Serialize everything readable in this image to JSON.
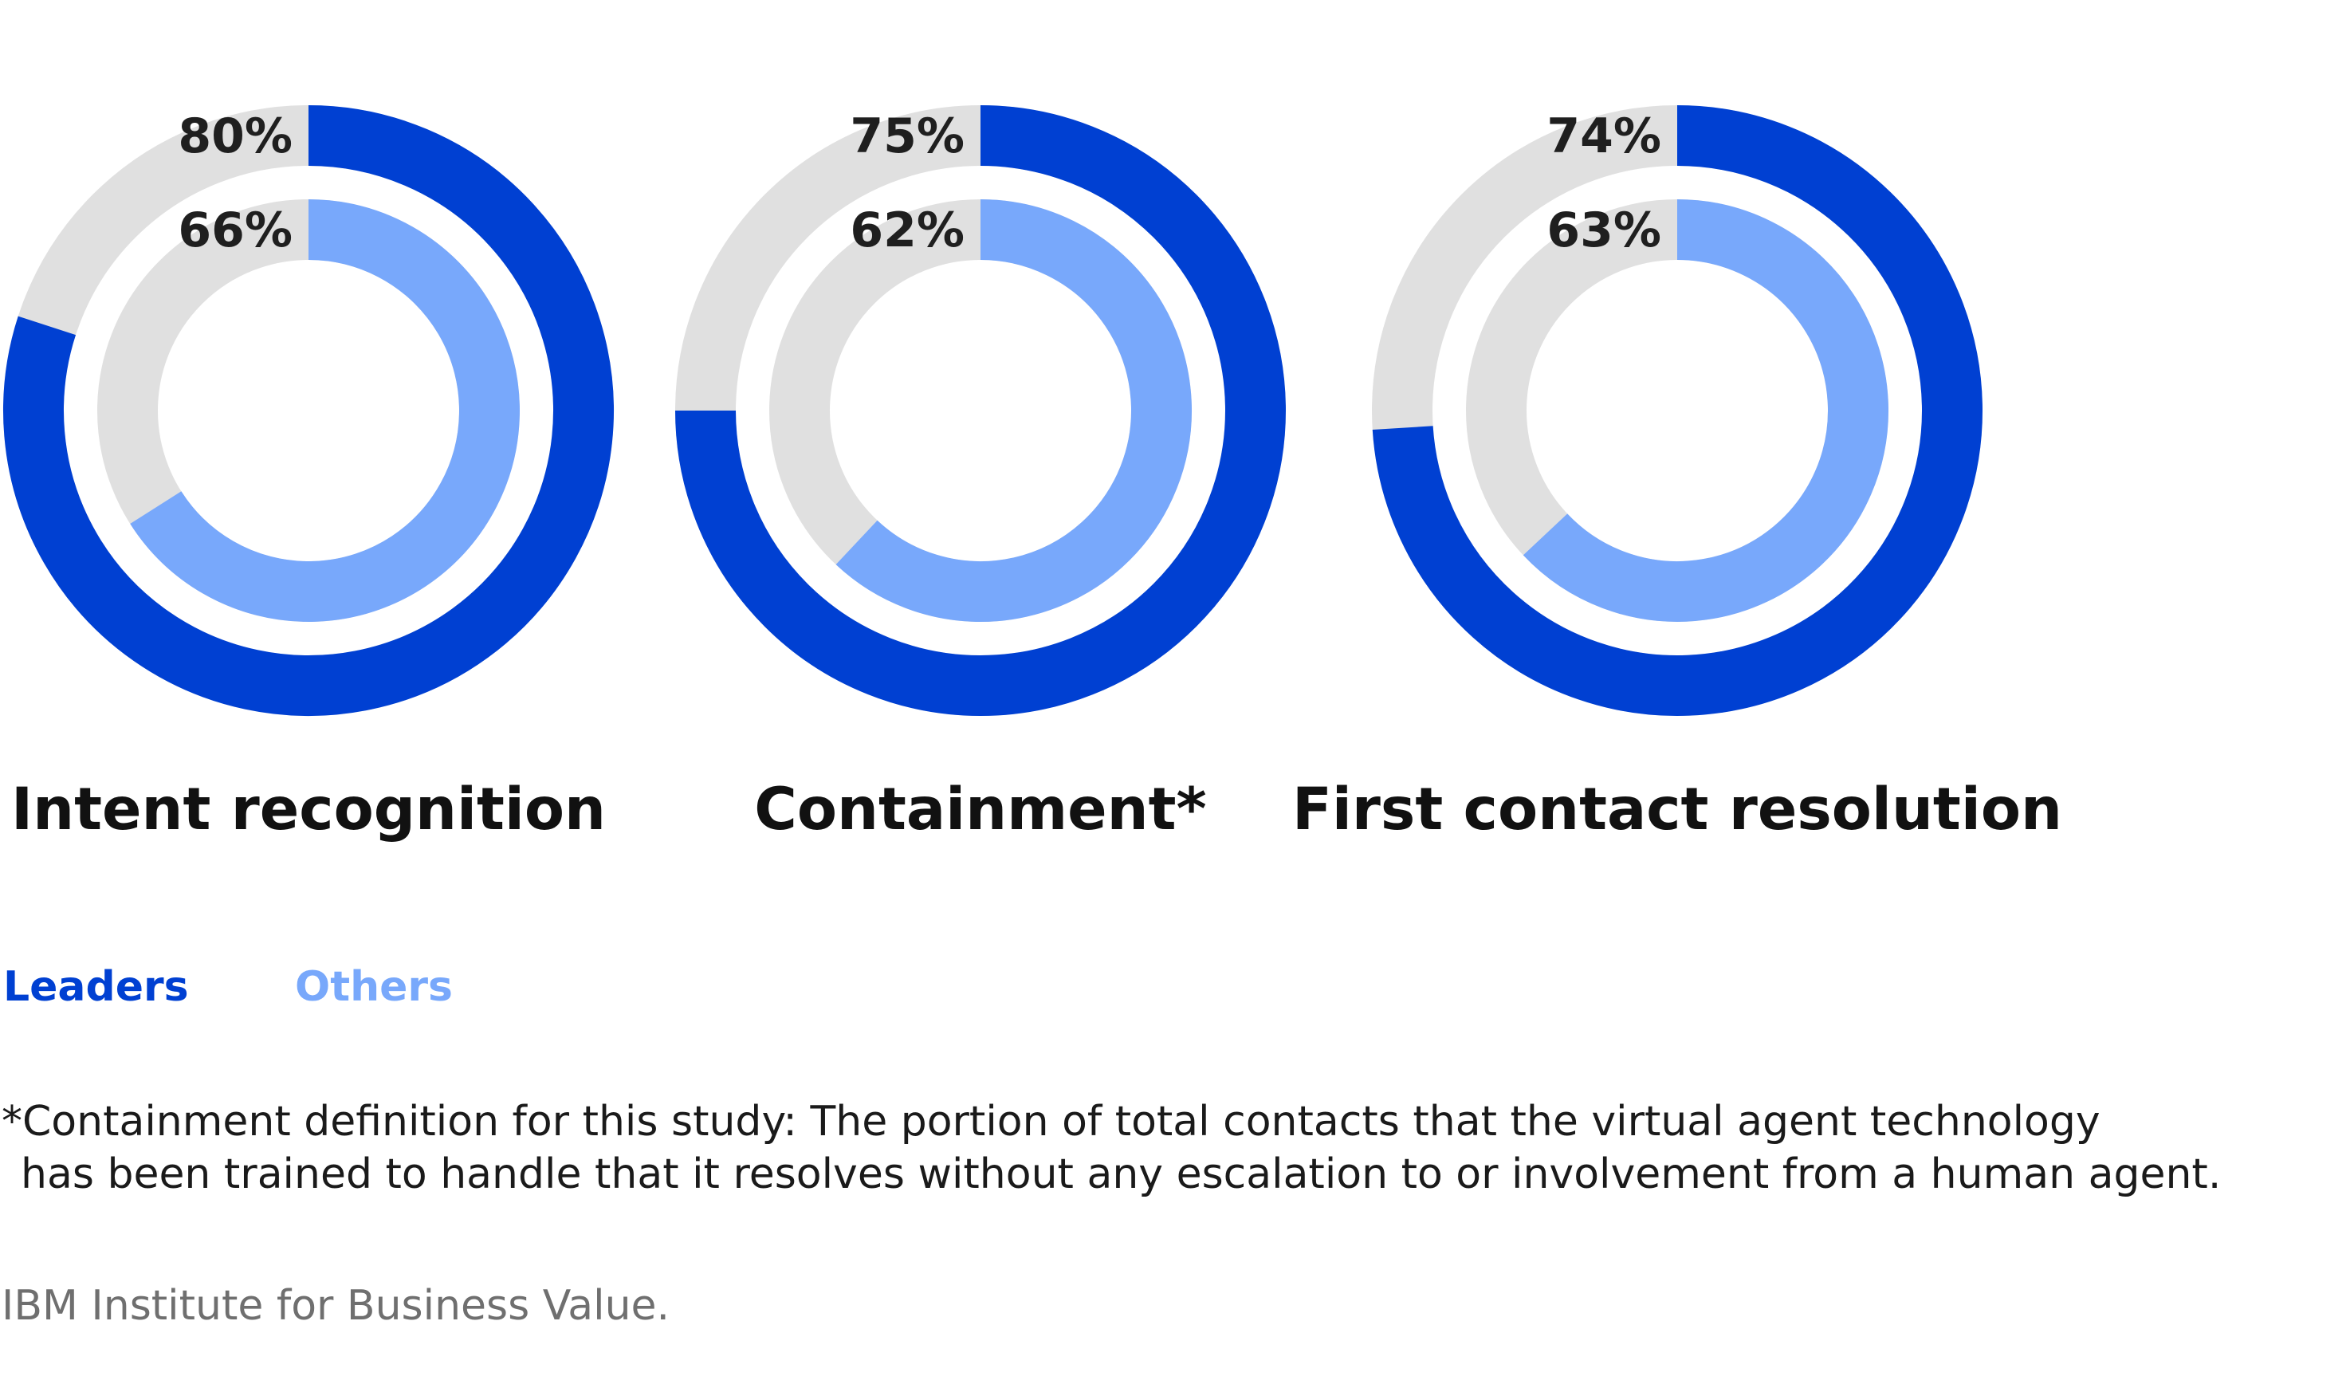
{
  "colors": {
    "leaders": "#0040d2",
    "others": "#78a8fb",
    "track": "#e0e0e0",
    "text": "#1f1f1f",
    "source": "#6f6f6f"
  },
  "chart_data": {
    "type": "donut",
    "unit": "%",
    "series": [
      {
        "name": "Leaders",
        "values": [
          80,
          75,
          74
        ]
      },
      {
        "name": "Others",
        "values": [
          66,
          62,
          63
        ]
      }
    ],
    "categories": [
      "Intent recognition",
      "Containment*",
      "First contact resolution"
    ],
    "value_labels": {
      "Leaders": [
        "80%",
        "75%",
        "74%"
      ],
      "Others": [
        "66%",
        "62%",
        "63%"
      ]
    },
    "legend": {
      "placement": "bottom-left",
      "items": [
        "Leaders",
        "Others"
      ]
    }
  },
  "footnote": {
    "line1": "*Containment definition for this study: The portion of total contacts that the virtual agent technology",
    "line2": "has been trained to handle that it resolves without any escalation to or involvement from a human agent."
  },
  "source": "IBM Institute for Business Value."
}
